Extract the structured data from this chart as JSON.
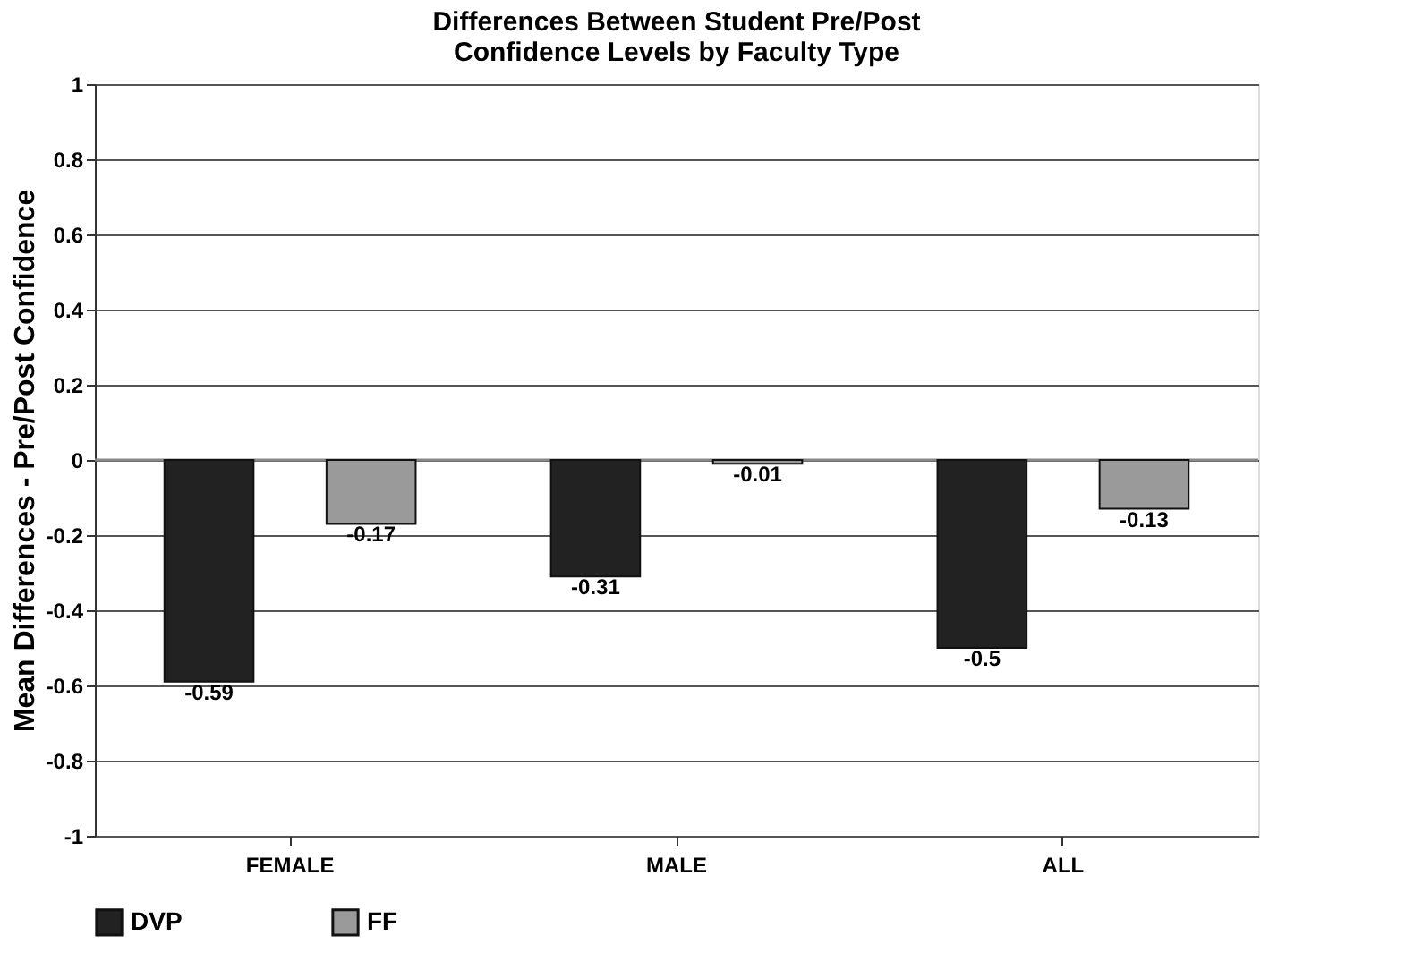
{
  "chart_data": {
    "type": "bar",
    "title": "Differences Between Student Pre/Post\nConfidence Levels by Faculty Type",
    "ylabel": "Mean Differences - Pre/Post Confidence",
    "categories": [
      "FEMALE",
      "MALE",
      "ALL"
    ],
    "series": [
      {
        "name": "DVP",
        "color": "#222222",
        "values": [
          -0.59,
          -0.31,
          -0.5
        ]
      },
      {
        "name": "FF",
        "color": "#9a9a9a",
        "values": [
          -0.17,
          -0.01,
          -0.13
        ]
      }
    ],
    "ylim": [
      -1,
      1
    ],
    "yticks": [
      -1,
      -0.8,
      -0.6,
      -0.4,
      -0.2,
      0,
      0.2,
      0.4,
      0.6,
      0.8,
      1
    ],
    "grid": "y",
    "legend": "bottom",
    "data_labels": true
  }
}
